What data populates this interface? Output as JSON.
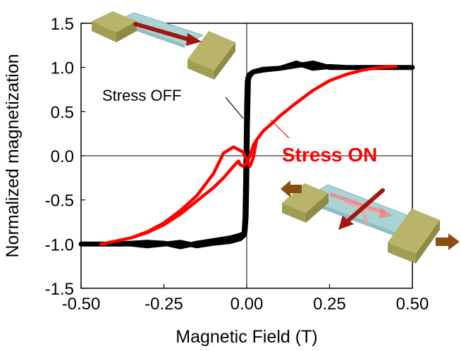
{
  "chart_data": {
    "type": "line",
    "xlabel": "Magnetic Field (T)",
    "ylabel": "Normalized magnetization",
    "xlim": [
      -0.5,
      0.5
    ],
    "ylim": [
      -1.5,
      1.5
    ],
    "xticks": [
      "-0.50",
      "-0.25",
      "0.00",
      "0.25",
      "0.50"
    ],
    "yticks": [
      "1.5",
      "1.0",
      "0.5",
      "0.0",
      "-0.5",
      "-1.0",
      "-1.5"
    ],
    "grid": false,
    "zero_lines": true,
    "series": [
      {
        "color": "#000000",
        "x": [
          -0.5,
          -0.45,
          -0.4,
          -0.35,
          -0.3,
          -0.25,
          -0.2,
          -0.15,
          -0.1,
          -0.05,
          -0.02,
          -0.008,
          -0.005,
          -0.002,
          0.0,
          0.002,
          0.005,
          0.008,
          0.02,
          0.05,
          0.1,
          0.15,
          0.2,
          0.25,
          0.3,
          0.35,
          0.4,
          0.45,
          0.5,
          0.45,
          0.4,
          0.35,
          0.3,
          0.25,
          0.2,
          0.15,
          0.1,
          0.05,
          0.02,
          0.008,
          0.005,
          0.002,
          0.0,
          -0.002,
          -0.005,
          -0.008,
          -0.02,
          -0.05,
          -0.1,
          -0.15,
          -0.2,
          -0.25,
          -0.3,
          -0.35,
          -0.4,
          -0.45,
          -0.5
        ],
        "y": [
          -1.0,
          -1.0,
          -1.0,
          -0.99,
          -0.98,
          -0.99,
          -1.03,
          -0.99,
          -0.96,
          -0.93,
          -0.9,
          -0.88,
          -0.7,
          0.0,
          0.6,
          0.85,
          0.9,
          0.92,
          0.95,
          0.97,
          0.99,
          1.02,
          1.05,
          1.0,
          1.0,
          1.0,
          1.0,
          1.0,
          1.0,
          1.0,
          1.0,
          1.0,
          1.0,
          1.01,
          0.99,
          1.05,
          0.99,
          0.98,
          0.95,
          0.9,
          0.85,
          0.3,
          -0.3,
          -0.7,
          -0.86,
          -0.9,
          -0.94,
          -0.97,
          -0.99,
          -1.02,
          -0.98,
          -1.0,
          -1.02,
          -1.0,
          -1.0,
          -1.0,
          -1.0
        ]
      },
      {
        "color": "#ff0000",
        "x": [
          -0.44,
          -0.4,
          -0.35,
          -0.3,
          -0.25,
          -0.2,
          -0.15,
          -0.1,
          -0.07,
          -0.04,
          -0.025,
          -0.02,
          -0.01,
          0.0,
          0.01,
          0.02,
          0.03,
          0.05,
          0.08,
          0.1,
          0.15,
          0.2,
          0.25,
          0.3,
          0.35,
          0.4,
          0.45,
          0.4,
          0.35,
          0.3,
          0.25,
          0.2,
          0.15,
          0.1,
          0.08,
          0.05,
          0.03,
          0.02,
          0.01,
          0.0,
          -0.01,
          -0.02,
          -0.04,
          -0.07,
          -0.1,
          -0.15,
          -0.2,
          -0.25,
          -0.3,
          -0.35,
          -0.4,
          -0.44
        ],
        "y": [
          -1.0,
          -0.97,
          -0.93,
          -0.87,
          -0.78,
          -0.66,
          -0.51,
          -0.36,
          -0.25,
          -0.12,
          -0.06,
          -0.1,
          -0.12,
          -0.08,
          0.0,
          0.12,
          0.18,
          0.28,
          0.38,
          0.45,
          0.6,
          0.74,
          0.85,
          0.92,
          0.97,
          1.0,
          1.01,
          1.0,
          0.97,
          0.92,
          0.85,
          0.74,
          0.6,
          0.45,
          0.38,
          0.28,
          0.18,
          -0.02,
          -0.12,
          -0.06,
          0.04,
          0.06,
          0.1,
          0.03,
          -0.2,
          -0.45,
          -0.62,
          -0.76,
          -0.86,
          -0.93,
          -0.97,
          -1.0
        ]
      }
    ],
    "annotations": [
      {
        "text": "Stress OFF",
        "color": "#000000",
        "bold": false
      },
      {
        "text": "Stress ON",
        "color": "#ff0000",
        "bold": true
      }
    ]
  },
  "colors": {
    "block_top": "#b9b469",
    "block_side": "#8f8a45",
    "block_front": "#a29d55",
    "plate": "#a9d3d4",
    "arrow_dark": "#a3150f",
    "arrow_light": "#ff7a7a",
    "stress_arrow": "#8a4e15"
  },
  "icons": [
    "unstrained-sample-icon",
    "strained-sample-icon"
  ]
}
